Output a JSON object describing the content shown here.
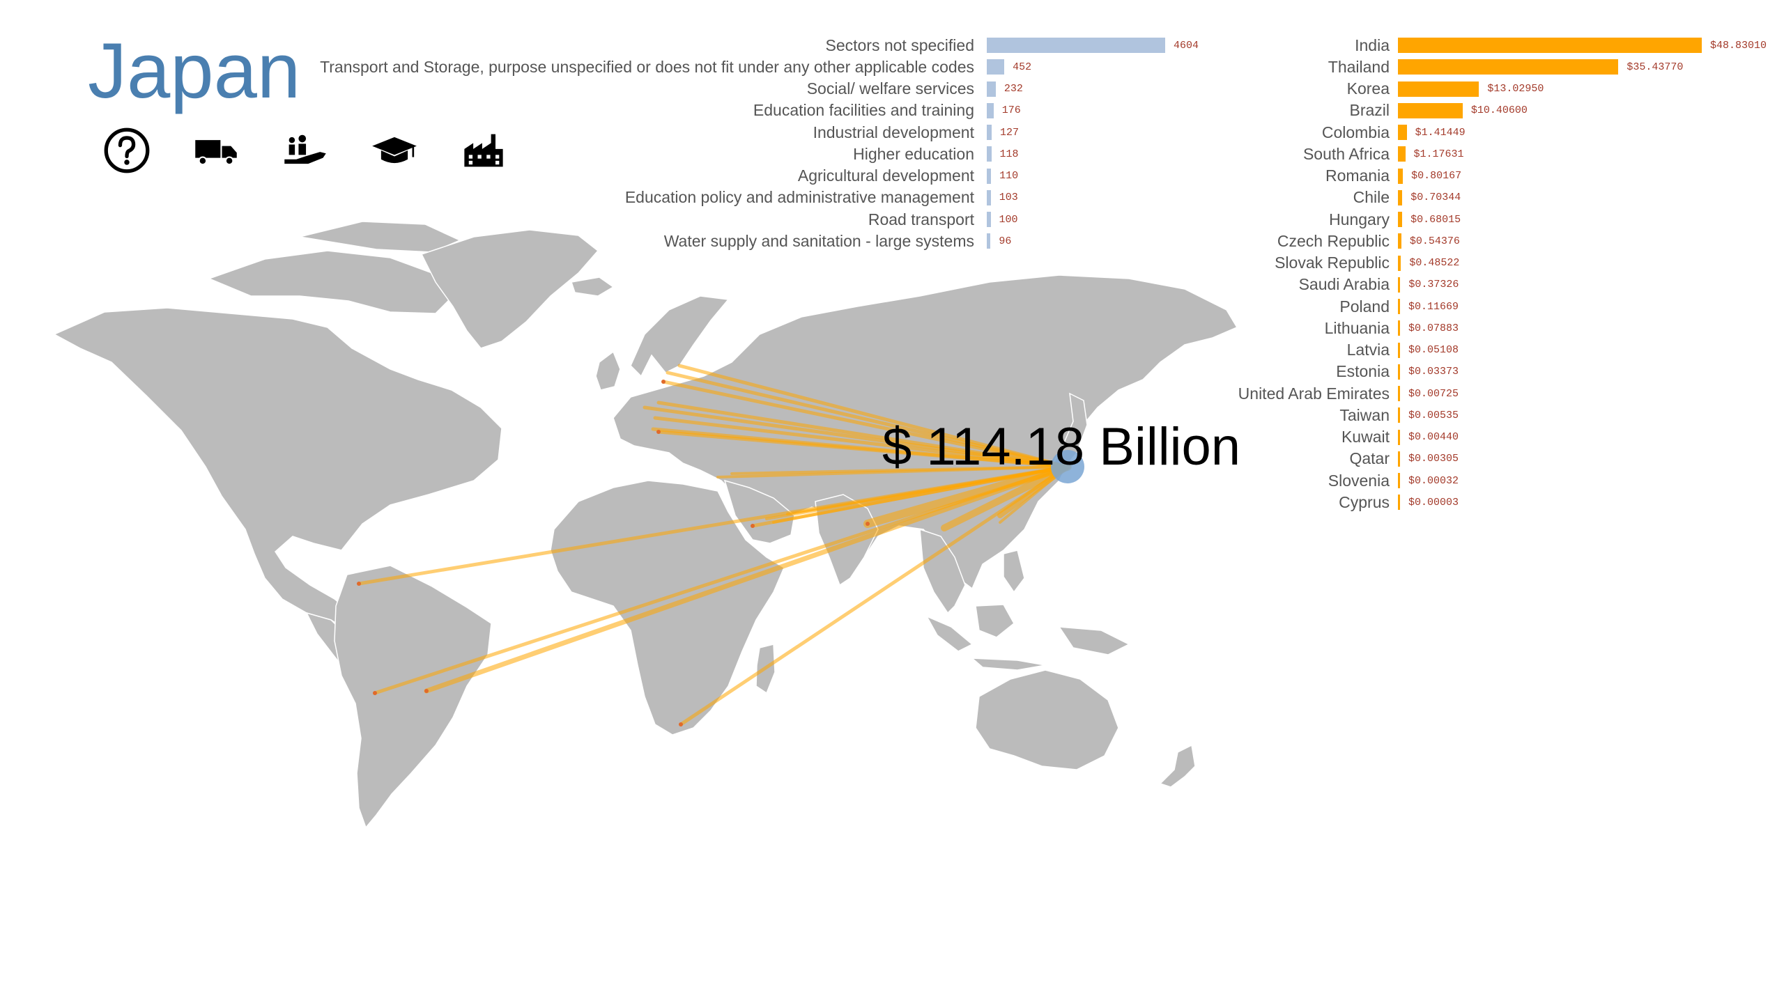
{
  "country": "Japan",
  "total": "$ 114.18 Billion",
  "icons": [
    {
      "name": "question-icon",
      "label": "Sectors not specified"
    },
    {
      "name": "truck-icon",
      "label": "Transport and Storage"
    },
    {
      "name": "welfare-icon",
      "label": "Social/ welfare services"
    },
    {
      "name": "graduation-cap-icon",
      "label": "Education"
    },
    {
      "name": "factory-icon",
      "label": "Industrial development"
    }
  ],
  "colors": {
    "title": "#4a7fb0",
    "sector_bar": "#b0c4de",
    "recipient_bar": "#ffa500",
    "value_text": "#a33a2a",
    "land": "#bbbbbb",
    "flow_line": "#ffa500",
    "origin_marker": "#7aa6d4"
  },
  "sectors": [
    {
      "label": "Sectors not specified",
      "value": "4604",
      "n": 4604
    },
    {
      "label": "Transport and Storage, purpose unspecified or does not fit under any other applicable codes",
      "value": "452",
      "n": 452
    },
    {
      "label": "Social/ welfare services",
      "value": "232",
      "n": 232
    },
    {
      "label": "Education facilities and training",
      "value": "176",
      "n": 176
    },
    {
      "label": "Industrial development",
      "value": "127",
      "n": 127
    },
    {
      "label": "Higher education",
      "value": "118",
      "n": 118
    },
    {
      "label": "Agricultural development",
      "value": "110",
      "n": 110
    },
    {
      "label": "Education policy and administrative management",
      "value": "103",
      "n": 103
    },
    {
      "label": "Road transport",
      "value": "100",
      "n": 100
    },
    {
      "label": "Water supply and sanitation - large systems",
      "value": "96",
      "n": 96
    }
  ],
  "recipients": [
    {
      "label": "India",
      "value": "$48.83010",
      "n": 48.8301
    },
    {
      "label": "Thailand",
      "value": "$35.43770",
      "n": 35.4377
    },
    {
      "label": "Korea",
      "value": "$13.02950",
      "n": 13.0295
    },
    {
      "label": "Brazil",
      "value": "$10.40600",
      "n": 10.406
    },
    {
      "label": "Colombia",
      "value": "$1.41449",
      "n": 1.41449
    },
    {
      "label": "South Africa",
      "value": "$1.17631",
      "n": 1.17631
    },
    {
      "label": "Romania",
      "value": "$0.80167",
      "n": 0.80167
    },
    {
      "label": "Chile",
      "value": "$0.70344",
      "n": 0.70344
    },
    {
      "label": "Hungary",
      "value": "$0.68015",
      "n": 0.68015
    },
    {
      "label": "Czech Republic",
      "value": "$0.54376",
      "n": 0.54376
    },
    {
      "label": "Slovak Republic",
      "value": "$0.48522",
      "n": 0.48522
    },
    {
      "label": "Saudi Arabia",
      "value": "$0.37326",
      "n": 0.37326
    },
    {
      "label": "Poland",
      "value": "$0.11669",
      "n": 0.11669
    },
    {
      "label": "Lithuania",
      "value": "$0.07883",
      "n": 0.07883
    },
    {
      "label": "Latvia",
      "value": "$0.05108",
      "n": 0.05108
    },
    {
      "label": "Estonia",
      "value": "$0.03373",
      "n": 0.03373
    },
    {
      "label": "United Arab Emirates",
      "value": "$0.00725",
      "n": 0.00725
    },
    {
      "label": "Taiwan",
      "value": "$0.00535",
      "n": 0.00535
    },
    {
      "label": "Kuwait",
      "value": "$0.00440",
      "n": 0.0044
    },
    {
      "label": "Qatar",
      "value": "$0.00305",
      "n": 0.00305
    },
    {
      "label": "Slovenia",
      "value": "$0.00032",
      "n": 0.00032
    },
    {
      "label": "Cyprus",
      "value": "$0.00003",
      "n": 3e-05
    }
  ]
}
